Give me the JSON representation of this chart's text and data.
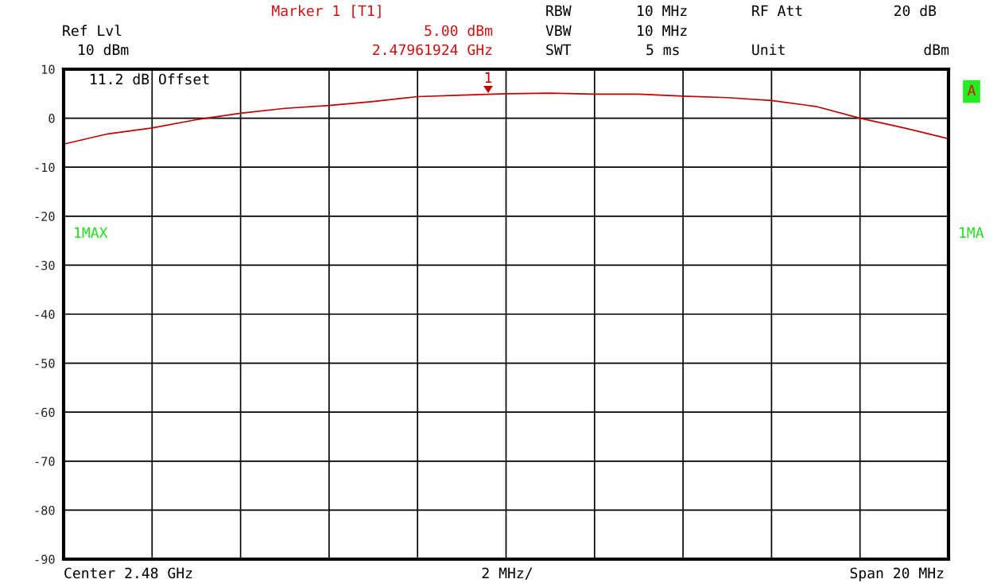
{
  "chart_data": {
    "type": "line",
    "categories": [
      null,
      null,
      null,
      null,
      null,
      null,
      null,
      null,
      null,
      null,
      null,
      null,
      null,
      null,
      null,
      null,
      null,
      null,
      null,
      null,
      null
    ],
    "series": [
      {
        "color": "#c00000",
        "values": [
          -5.3,
          -3.2,
          -2.0,
          -0.3,
          1.0,
          2.0,
          2.6,
          3.4,
          4.4,
          4.7,
          5.0,
          5.1,
          4.9,
          4.9,
          4.5,
          4.2,
          3.6,
          2.4,
          0.0,
          -2.0,
          -4.2
        ]
      }
    ],
    "ylim": [
      -90,
      10
    ],
    "yticks": [
      -90,
      -80,
      -70,
      -60,
      -50,
      -40,
      -30,
      -20,
      -10,
      0,
      10
    ],
    "grid": true,
    "tick_labels": "y",
    "line_style": "solid",
    "annotations": [
      "Marker 1 [T1]",
      "Ref Lvl",
      "5.00 dBm",
      "10 dBm",
      "2.47961924 GHz",
      "RBW",
      "10 MHz",
      "RF Att",
      "20 dB",
      "VBW",
      "10 MHz",
      "SWT",
      "5 ms",
      "Unit",
      "dBm",
      "11.2 dB Offset",
      "1MAX",
      "1MA",
      "A",
      "Center 2.48 GHz",
      "2 MHz/",
      "Span 20 MHz",
      "1"
    ]
  }
}
